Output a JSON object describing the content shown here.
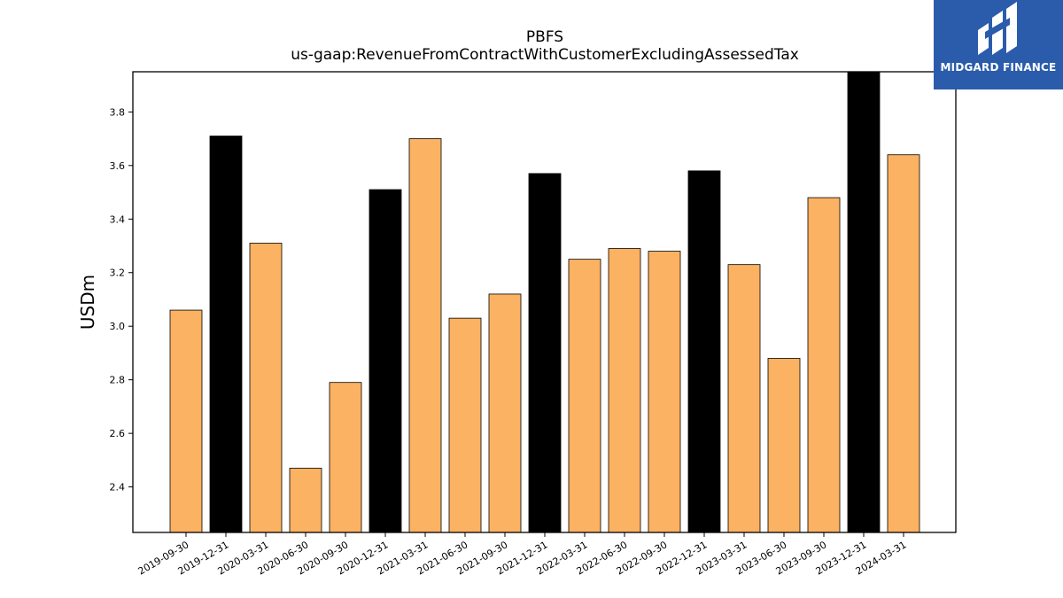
{
  "chart_data": {
    "type": "bar",
    "title": "PBFS",
    "subtitle": "us-gaap:RevenueFromContractWithCustomerExcludingAssessedTax",
    "xlabel": "",
    "ylabel": "USDm",
    "ylim": [
      2.23,
      3.95
    ],
    "yticks": [
      2.4,
      2.6,
      2.8,
      3.0,
      3.2,
      3.4,
      3.6,
      3.8
    ],
    "categories": [
      "2019-09-30",
      "2019-12-31",
      "2020-03-31",
      "2020-06-30",
      "2020-09-30",
      "2020-12-31",
      "2021-03-31",
      "2021-06-30",
      "2021-09-30",
      "2021-12-31",
      "2022-03-31",
      "2022-06-30",
      "2022-09-30",
      "2022-12-31",
      "2023-03-31",
      "2023-06-30",
      "2023-09-30",
      "2023-12-31",
      "2024-03-31"
    ],
    "values": [
      3.06,
      3.71,
      3.31,
      2.47,
      2.79,
      3.51,
      3.7,
      3.03,
      3.12,
      3.57,
      3.25,
      3.29,
      3.28,
      3.58,
      3.23,
      2.88,
      3.48,
      3.96,
      3.64
    ],
    "bar_colors": [
      "#fbb262",
      "#000000",
      "#fbb262",
      "#fbb262",
      "#fbb262",
      "#000000",
      "#fbb262",
      "#fbb262",
      "#fbb262",
      "#000000",
      "#fbb262",
      "#fbb262",
      "#fbb262",
      "#000000",
      "#fbb262",
      "#fbb262",
      "#fbb262",
      "#000000",
      "#fbb262"
    ],
    "grid": false,
    "legend": "none"
  },
  "logo": {
    "text": "MIDGARD FINANCE",
    "background": "#2b5cab"
  }
}
